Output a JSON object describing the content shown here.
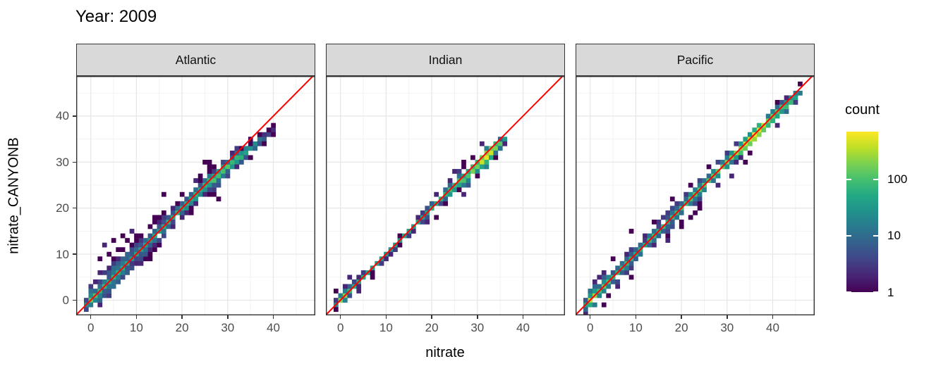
{
  "chart_data": {
    "type": "heatmap",
    "subtype": "geom_bin2d_faceted_scatter",
    "title": "Year: 2009",
    "xlabel": "nitrate",
    "ylabel": "nitrate_CANYONB",
    "x_ticks": [
      0,
      10,
      20,
      30,
      40
    ],
    "y_ticks": [
      0,
      10,
      20,
      30,
      40
    ],
    "x_minor_ticks": [
      5,
      15,
      25,
      35,
      45
    ],
    "y_minor_ticks": [
      5,
      15,
      25,
      35,
      45
    ],
    "xlim": [
      -3.2,
      49.2
    ],
    "ylim": [
      -3.3,
      48.7
    ],
    "bin_width": 1,
    "grid": true,
    "identity_line": {
      "show": true,
      "slope": 1,
      "intercept": 0,
      "color": "#ff0000"
    },
    "legend": {
      "title": "count",
      "position": "right",
      "scale": "log10",
      "ticks": [
        1,
        10,
        100
      ],
      "max_count": 700,
      "viridis_colors": [
        "#440154",
        "#482475",
        "#414487",
        "#355f8d",
        "#2a788e",
        "#21918c",
        "#22a884",
        "#44bf70",
        "#7ad151",
        "#bddf26",
        "#fde725"
      ]
    },
    "theme": {
      "strip_fill": "#d9d9d9",
      "strip_border": "#333333",
      "panel_border": "#333333",
      "panel_bg": "#ffffff",
      "grid_major": "#e6e6e6",
      "grid_minor": "#f1f1f1",
      "tick_color": "#333333",
      "tick_label_color": "#4d4d4d",
      "title_color": "#000000"
    },
    "facets": [
      {
        "label": "Atlantic",
        "seed": 11,
        "diagonal": [
          [
            -1,
            -1
          ],
          [
            18,
            18
          ],
          [
            26,
            25.6
          ],
          [
            30,
            29
          ],
          [
            34,
            32.3
          ],
          [
            38,
            35.3
          ],
          [
            40,
            36.6
          ]
        ],
        "center_counts": [
          [
            -1,
            25
          ],
          [
            0,
            130
          ],
          [
            2,
            90
          ],
          [
            5,
            60
          ],
          [
            10,
            45
          ],
          [
            15,
            45
          ],
          [
            20,
            70
          ],
          [
            24,
            60
          ],
          [
            27,
            90
          ],
          [
            30,
            110
          ],
          [
            33,
            60
          ],
          [
            36,
            20
          ],
          [
            38,
            6
          ],
          [
            40,
            2
          ]
        ],
        "spread": [
          [
            -1,
            1.6
          ],
          [
            3,
            2.2
          ],
          [
            8,
            2.4
          ],
          [
            13,
            2.1
          ],
          [
            17,
            1.4
          ],
          [
            22,
            1.2
          ],
          [
            27,
            1.4
          ],
          [
            31,
            1.5
          ],
          [
            35,
            1.1
          ],
          [
            40,
            0.8
          ]
        ],
        "outliers": [
          [
            1,
            4
          ],
          [
            2,
            6
          ],
          [
            2,
            9
          ],
          [
            3,
            12
          ],
          [
            4,
            10
          ],
          [
            5,
            13
          ],
          [
            6,
            11
          ],
          [
            7,
            14
          ],
          [
            8,
            13
          ],
          [
            9,
            15
          ],
          [
            3,
            3
          ],
          [
            5,
            6
          ],
          [
            6,
            4
          ],
          [
            8,
            6
          ],
          [
            10,
            8
          ],
          [
            12,
            11
          ],
          [
            11,
            14
          ],
          [
            13,
            16
          ],
          [
            14,
            18
          ],
          [
            10,
            13
          ],
          [
            16,
            23
          ],
          [
            20,
            23
          ],
          [
            25,
            30
          ],
          [
            32,
            29
          ],
          [
            28,
            22
          ],
          [
            34,
            31
          ],
          [
            23,
            26
          ],
          [
            26,
            28
          ]
        ]
      },
      {
        "label": "Indian",
        "seed": 23,
        "diagonal": [
          [
            -1,
            -1
          ],
          [
            22,
            22
          ],
          [
            28,
            27.3
          ],
          [
            33,
            32.3
          ],
          [
            36,
            35
          ]
        ],
        "center_counts": [
          [
            -1,
            30
          ],
          [
            0,
            260
          ],
          [
            2,
            70
          ],
          [
            6,
            40
          ],
          [
            12,
            40
          ],
          [
            18,
            50
          ],
          [
            23,
            70
          ],
          [
            27,
            110
          ],
          [
            30,
            180
          ],
          [
            32,
            560
          ],
          [
            34,
            250
          ],
          [
            36,
            25
          ]
        ],
        "spread": [
          [
            -1,
            1.0
          ],
          [
            6,
            0.8
          ],
          [
            12,
            0.8
          ],
          [
            18,
            0.9
          ],
          [
            24,
            1.2
          ],
          [
            28,
            1.5
          ],
          [
            32,
            1.3
          ],
          [
            36,
            0.8
          ]
        ],
        "outliers": [
          [
            1,
            3
          ],
          [
            2,
            5
          ],
          [
            4,
            2
          ],
          [
            27,
            23
          ],
          [
            26,
            24
          ],
          [
            28,
            26
          ],
          [
            24,
            26
          ],
          [
            25,
            28
          ],
          [
            30,
            27
          ],
          [
            27,
            30
          ],
          [
            19,
            17
          ],
          [
            21,
            23
          ],
          [
            31,
            34
          ]
        ]
      },
      {
        "label": "Pacific",
        "seed": 37,
        "diagonal": [
          [
            -1,
            -1
          ],
          [
            30,
            30
          ],
          [
            36,
            35.7
          ],
          [
            42,
            41.5
          ],
          [
            46,
            45
          ]
        ],
        "center_counts": [
          [
            -1,
            45
          ],
          [
            0,
            350
          ],
          [
            2,
            120
          ],
          [
            6,
            80
          ],
          [
            12,
            60
          ],
          [
            18,
            70
          ],
          [
            24,
            100
          ],
          [
            29,
            160
          ],
          [
            33,
            230
          ],
          [
            36,
            620
          ],
          [
            39,
            150
          ],
          [
            42,
            100
          ],
          [
            45,
            45
          ],
          [
            46,
            20
          ]
        ],
        "spread": [
          [
            -1,
            1.5
          ],
          [
            4,
            1.8
          ],
          [
            9,
            1.5
          ],
          [
            14,
            1.3
          ],
          [
            19,
            1.6
          ],
          [
            24,
            1.4
          ],
          [
            29,
            1.2
          ],
          [
            34,
            1.0
          ],
          [
            39,
            1.1
          ],
          [
            43,
            1.0
          ],
          [
            46,
            0.7
          ]
        ],
        "outliers": [
          [
            2,
            5
          ],
          [
            1,
            4
          ],
          [
            3,
            6
          ],
          [
            6,
            3
          ],
          [
            9,
            15
          ],
          [
            14,
            17
          ],
          [
            18,
            22
          ],
          [
            20,
            16
          ],
          [
            26,
            29
          ],
          [
            28,
            25
          ],
          [
            17,
            13
          ],
          [
            32,
            30
          ],
          [
            34,
            30
          ],
          [
            31,
            27
          ],
          [
            41,
            38
          ],
          [
            43,
            44
          ]
        ]
      }
    ]
  }
}
